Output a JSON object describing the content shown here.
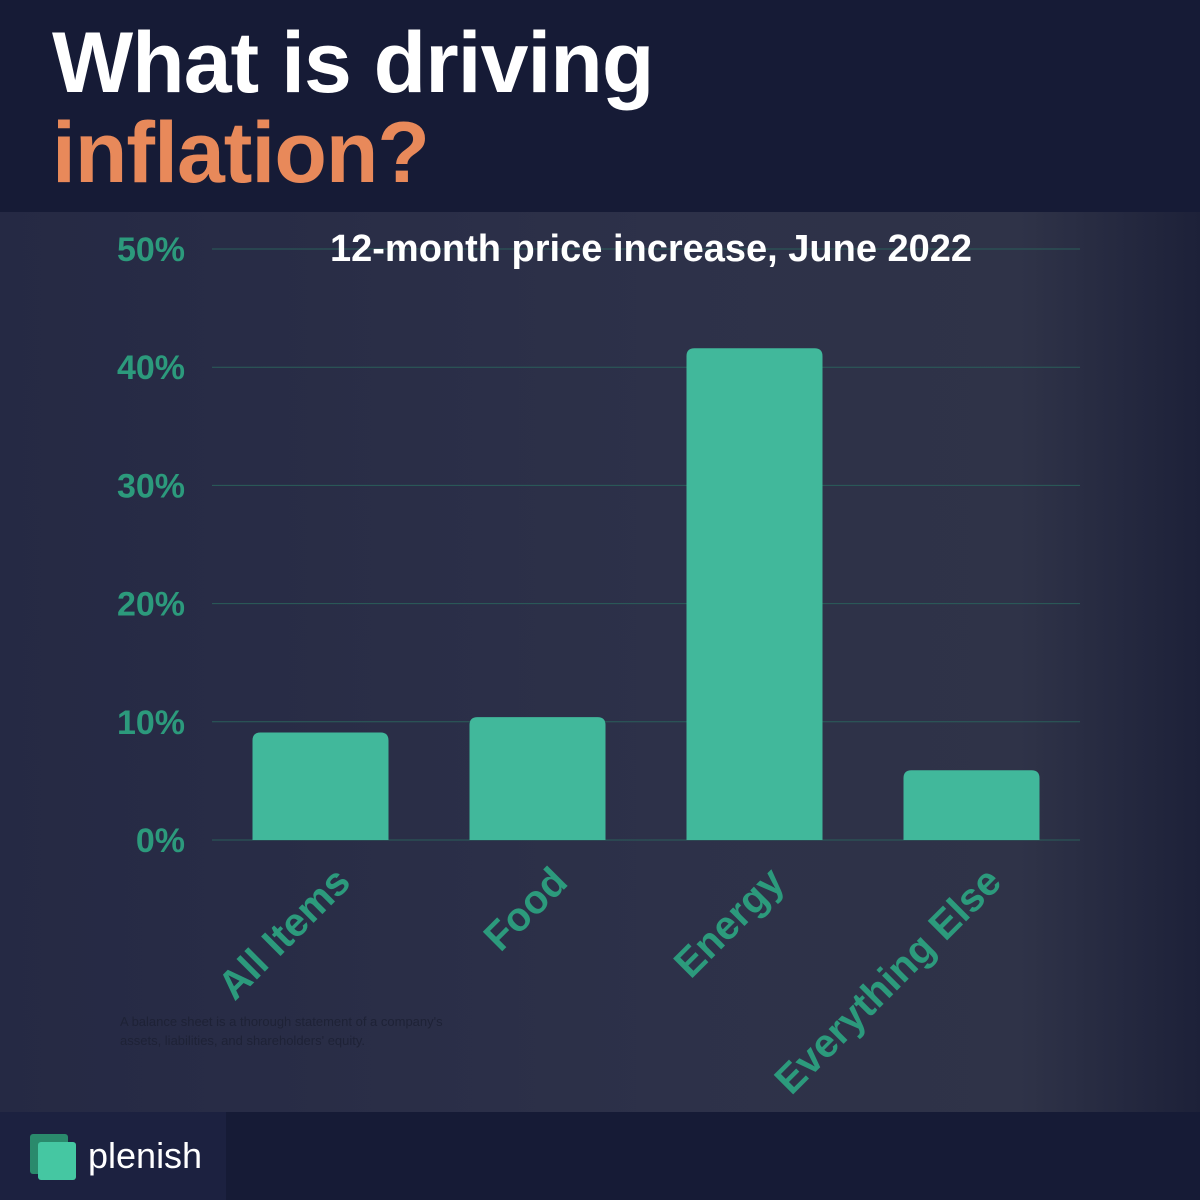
{
  "header": {
    "title_line1": "What is driving",
    "title_line2": "inflation?"
  },
  "chart_data": {
    "type": "bar",
    "title": "12-month price increase, June 2022",
    "categories": [
      "All Items",
      "Food",
      "Energy",
      "Everything Else"
    ],
    "values": [
      9.1,
      10.4,
      41.6,
      5.9
    ],
    "ylim": [
      0,
      50
    ],
    "yticks": [
      0,
      10,
      20,
      30,
      40,
      50
    ],
    "ytick_labels": [
      "0%",
      "10%",
      "20%",
      "30%",
      "40%",
      "50%"
    ],
    "xlabel": "",
    "ylabel": "",
    "grid": true,
    "colors": {
      "bar": "#41b89b",
      "label": "#2c9a7c",
      "grid": "#2a5e5a"
    }
  },
  "footnote": "A balance sheet is a thorough statement of a company's assets, liabilities, and shareholders' equity.",
  "brand": {
    "name": "plenish",
    "icon": "plenish-logo-icon"
  }
}
